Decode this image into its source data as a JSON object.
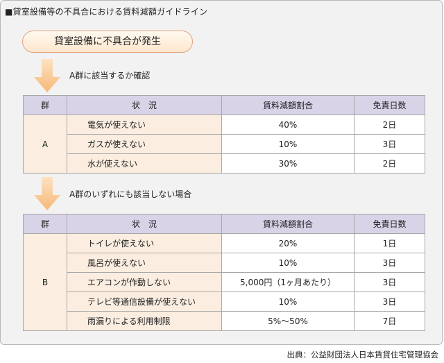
{
  "title": "■貸室設備等の不具合における賃料減額ガイドライン",
  "start": "貸室設備に不具合が発生",
  "step1": "A群に該当するか確認",
  "step2": "A群のいずれにも該当しない場合",
  "headers": [
    "群",
    "状　況",
    "賃料減額割合",
    "免責日数"
  ],
  "groupA": {
    "label": "A",
    "rows": [
      {
        "situation": "電気が使えない",
        "rate": "40%",
        "days": "2日"
      },
      {
        "situation": "ガスが使えない",
        "rate": "10%",
        "days": "3日"
      },
      {
        "situation": "水が使えない",
        "rate": "30%",
        "days": "2日"
      }
    ]
  },
  "groupB": {
    "label": "B",
    "rows": [
      {
        "situation": "トイレが使えない",
        "rate": "20%",
        "days": "1日"
      },
      {
        "situation": "風呂が使えない",
        "rate": "10%",
        "days": "3日"
      },
      {
        "situation": "エアコンが作動しない",
        "rate": "5,000円（1ヶ月あたり）",
        "days": "3日"
      },
      {
        "situation": "テレビ等通信設備が使えない",
        "rate": "10%",
        "days": "3日"
      },
      {
        "situation": "雨漏りによる利用制限",
        "rate": "5%～50%",
        "days": "7日"
      }
    ]
  },
  "source": "出典：公益財団法人日本賃貸住宅管理協会",
  "colors": {
    "header": "#d9d3e8",
    "cell": "#fbeee0",
    "arrow": "#f9c48a",
    "pill_border": "#e0a27a"
  }
}
